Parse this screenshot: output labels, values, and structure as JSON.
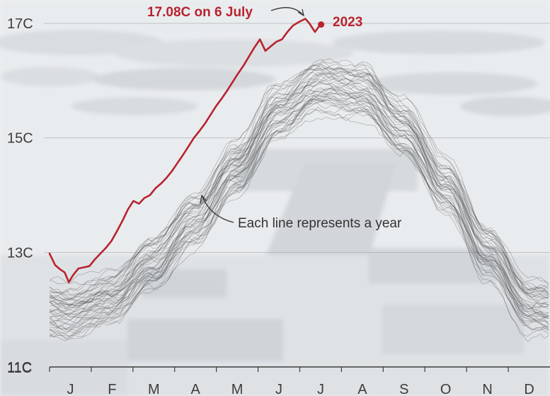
{
  "chart_data": {
    "type": "line",
    "xlabel": "",
    "ylabel": "",
    "ylim": [
      11,
      17.3
    ],
    "y_ticks": [
      {
        "value": 11,
        "label": "11C"
      },
      {
        "value": 13,
        "label": "13C"
      },
      {
        "value": 15,
        "label": "15C"
      },
      {
        "value": 17,
        "label": "17C"
      }
    ],
    "months": [
      "J",
      "F",
      "M",
      "A",
      "M",
      "J",
      "J",
      "A",
      "S",
      "O",
      "N",
      "D"
    ],
    "grid": true,
    "highlight_series": {
      "name": "2023",
      "color": "#b8232f",
      "x_day": [
        1,
        5,
        9,
        12,
        15,
        18,
        22,
        26,
        30,
        34,
        38,
        42,
        46,
        50,
        54,
        58,
        62,
        66,
        70,
        74,
        78,
        82,
        86,
        90,
        94,
        98,
        102,
        106,
        110,
        114,
        118,
        122,
        126,
        130,
        134,
        138,
        142,
        146,
        150,
        154,
        158,
        162,
        166,
        170,
        174,
        178,
        182,
        187,
        190,
        194,
        198
      ],
      "values": [
        12.98,
        12.78,
        12.7,
        12.65,
        12.48,
        12.6,
        12.72,
        12.74,
        12.76,
        12.88,
        12.98,
        13.08,
        13.2,
        13.37,
        13.55,
        13.75,
        13.9,
        13.85,
        13.95,
        14.0,
        14.12,
        14.2,
        14.3,
        14.42,
        14.56,
        14.7,
        14.85,
        15.0,
        15.12,
        15.25,
        15.4,
        15.55,
        15.68,
        15.82,
        15.97,
        16.12,
        16.26,
        16.42,
        16.58,
        16.72,
        16.52,
        16.6,
        16.68,
        16.72,
        16.85,
        16.96,
        17.02,
        17.08,
        17.0,
        16.85,
        16.98
      ]
    },
    "background_series": {
      "count": 44,
      "description_values": "ensemble of daily global sea-surface temperatures for earlier years",
      "mean_by_month": [
        12.0,
        12.25,
        12.85,
        13.6,
        14.5,
        15.5,
        15.95,
        15.85,
        15.2,
        14.2,
        13.05,
        12.1
      ],
      "color": "#3a3a3a"
    },
    "annotations": {
      "record_label": "17.08C on 6 July",
      "year_label": "2023",
      "ensemble_label": "Each line represents a year"
    }
  }
}
